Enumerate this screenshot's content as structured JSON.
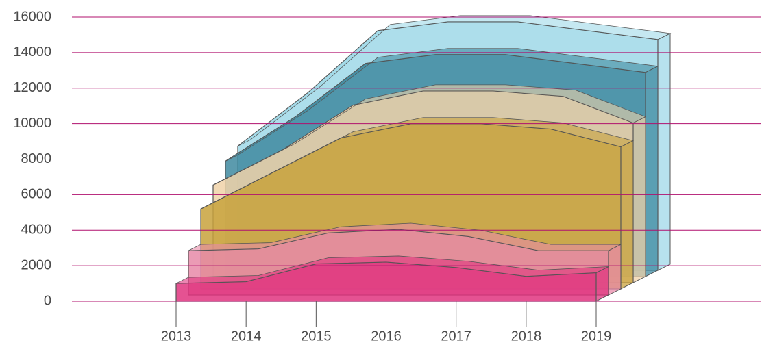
{
  "chart_data": {
    "type": "area3d",
    "categories": [
      "2013",
      "2014",
      "2015",
      "2016",
      "2017",
      "2018",
      "2019"
    ],
    "series": [
      {
        "color": "#e0347f",
        "values": [
          1000,
          1100,
          2100,
          2200,
          1900,
          1400,
          1600
        ]
      },
      {
        "color": "#e88aa8",
        "values": [
          2500,
          2600,
          3500,
          3700,
          3300,
          2500,
          2500
        ]
      },
      {
        "color": "#c8a23c",
        "values": [
          4500,
          6500,
          8500,
          9300,
          9300,
          9000,
          8000
        ]
      },
      {
        "color": "#f0d2a8",
        "values": [
          5500,
          7500,
          10000,
          10800,
          10800,
          10500,
          9000
        ]
      },
      {
        "color": "#3f8aa0",
        "values": [
          6500,
          9000,
          12000,
          12500,
          12500,
          12000,
          11500
        ]
      },
      {
        "color": "#9fd8e8",
        "values": [
          7000,
          10000,
          13500,
          14000,
          14000,
          13500,
          13000
        ]
      }
    ],
    "ylim": [
      0,
      16000
    ],
    "yticks": [
      0,
      2000,
      4000,
      6000,
      8000,
      10000,
      12000,
      14000,
      16000
    ],
    "grid": true,
    "grid_color": "#b0106e"
  }
}
